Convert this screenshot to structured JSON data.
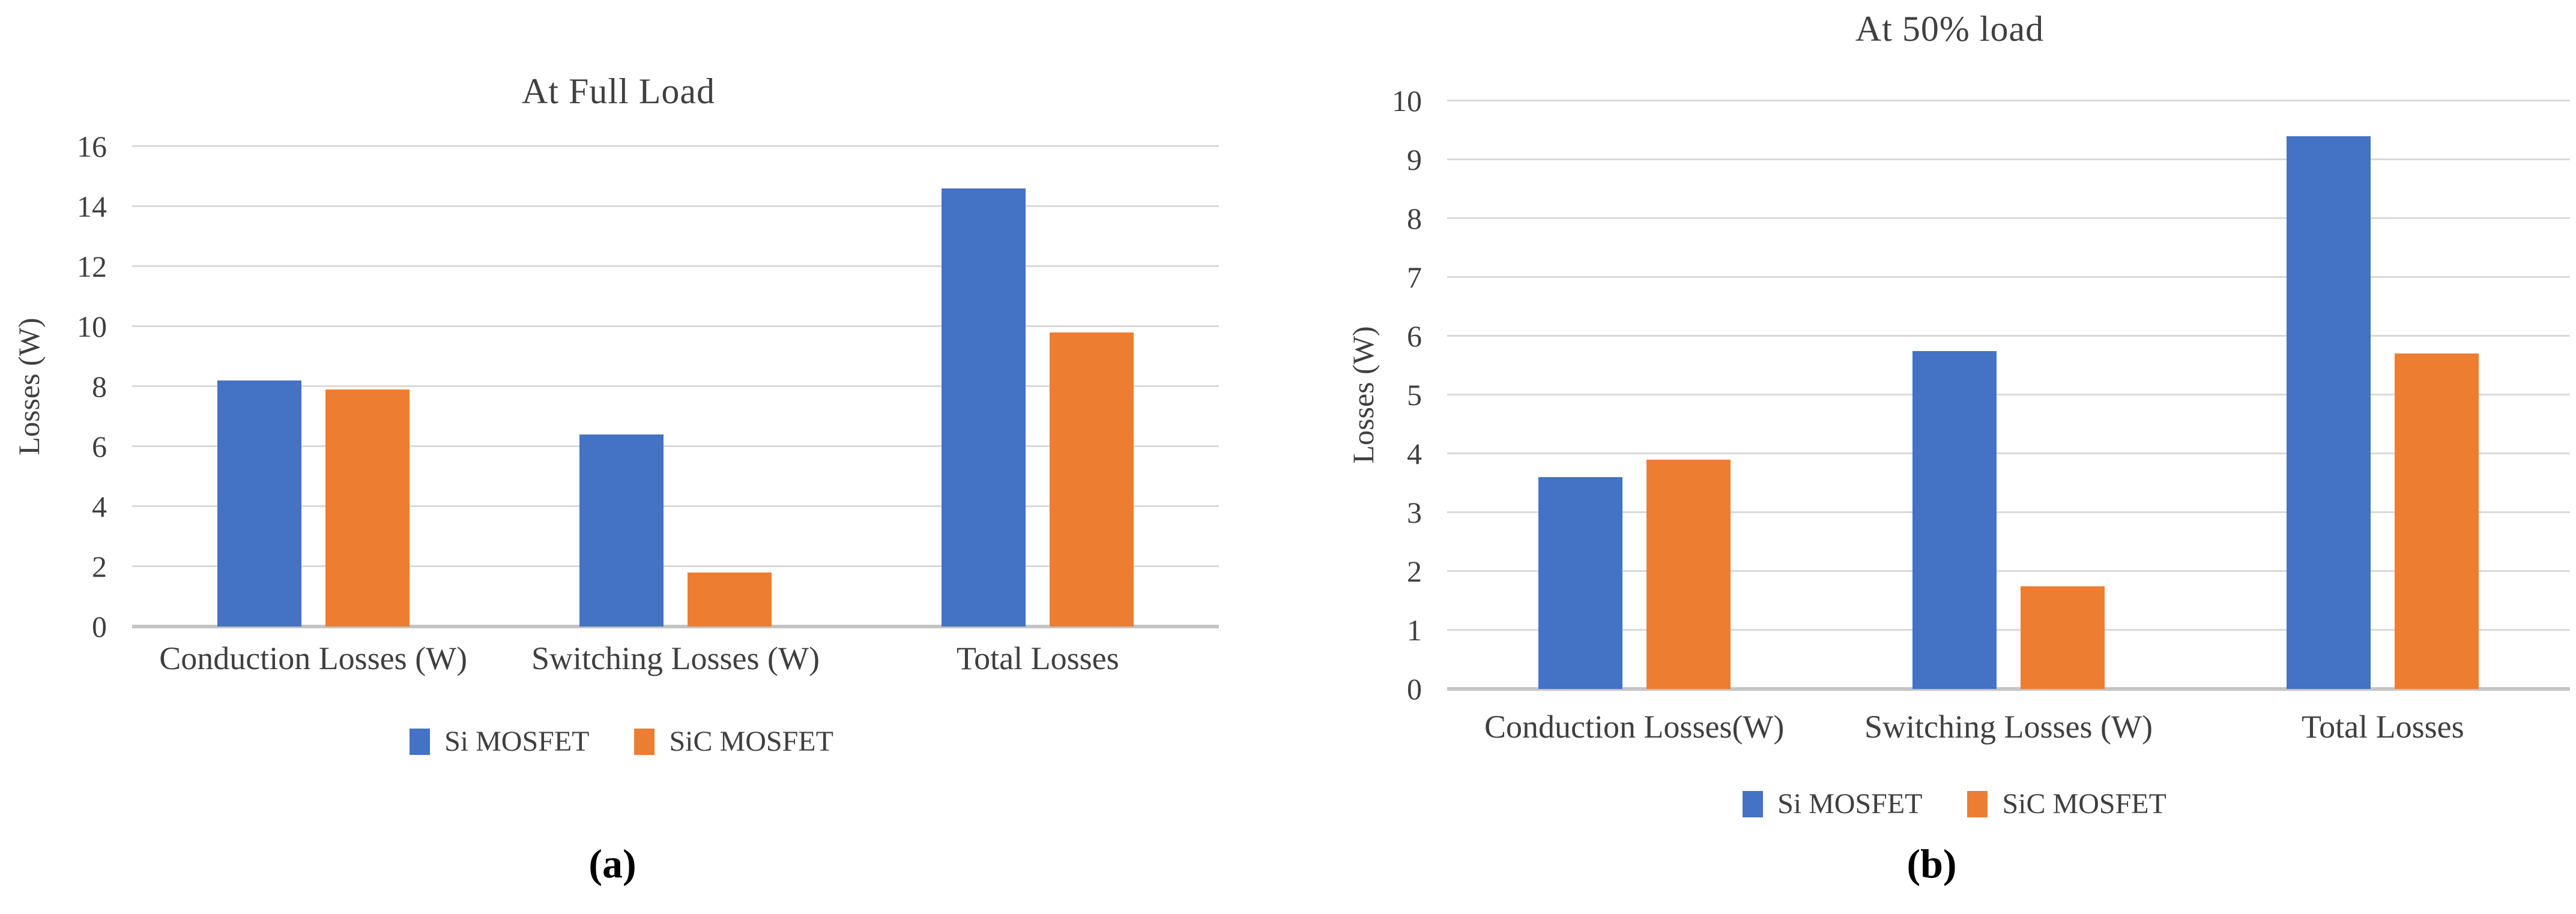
{
  "colors": {
    "si_series": "#4472C4",
    "sic_series": "#ED7D31",
    "gridline": "#D9D9D9",
    "axis_line": "#C4C4C4",
    "axis_text": "#3F3F3F",
    "caption_text": "#000000",
    "background": "#FFFFFF"
  },
  "chart_data": [
    {
      "type": "bar",
      "title": "At Full Load",
      "ylabel": "Losses (W)",
      "xlabel": "",
      "categories": [
        "Conduction Losses (W)",
        "Switching Losses (W)",
        "Total Losses"
      ],
      "series": [
        {
          "name": "Si MOSFET",
          "color": "#4472C4",
          "values": [
            8.2,
            6.4,
            14.6
          ]
        },
        {
          "name": "SiC MOSFET",
          "color": "#ED7D31",
          "values": [
            7.9,
            1.8,
            9.8
          ]
        }
      ],
      "ylim": [
        0,
        16
      ],
      "ytick_step": 2,
      "yticks": [
        0,
        2,
        4,
        6,
        8,
        10,
        12,
        14,
        16
      ],
      "grid": true,
      "legend_position": "bottom",
      "caption": "(a)"
    },
    {
      "type": "bar",
      "title": "At 50% load",
      "ylabel": "Losses (W)",
      "xlabel": "",
      "categories": [
        "Conduction Losses(W)",
        "Switching Losses (W)",
        "Total Losses"
      ],
      "series": [
        {
          "name": "Si MOSFET",
          "color": "#4472C4",
          "values": [
            3.6,
            5.75,
            9.4
          ]
        },
        {
          "name": "SiC MOSFET",
          "color": "#ED7D31",
          "values": [
            3.9,
            1.75,
            5.7
          ]
        }
      ],
      "ylim": [
        0,
        10
      ],
      "ytick_step": 1,
      "yticks": [
        0,
        1,
        2,
        3,
        4,
        5,
        6,
        7,
        8,
        9,
        10
      ],
      "grid": true,
      "legend_position": "bottom",
      "caption": "(b)"
    }
  ]
}
